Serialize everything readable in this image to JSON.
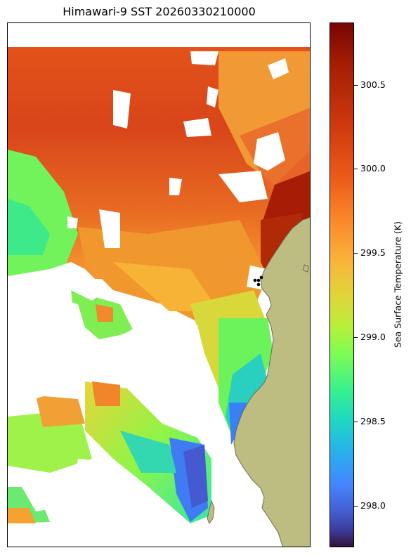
{
  "title": "Himawari-9 SST 20260330210000",
  "colorbar": {
    "label": "Sea Surface Temperature (K)",
    "ticks": [
      "300.5",
      "300.0",
      "299.5",
      "299.0",
      "298.5",
      "298.0"
    ],
    "range_k": [
      297.73,
      300.87
    ]
  },
  "colors": {
    "land": "#bdbd82",
    "coastline": "#6b6b55",
    "station_marker": "#000000"
  },
  "map_features": [
    "sst-field",
    "coastline",
    "land",
    "station-markers"
  ]
}
